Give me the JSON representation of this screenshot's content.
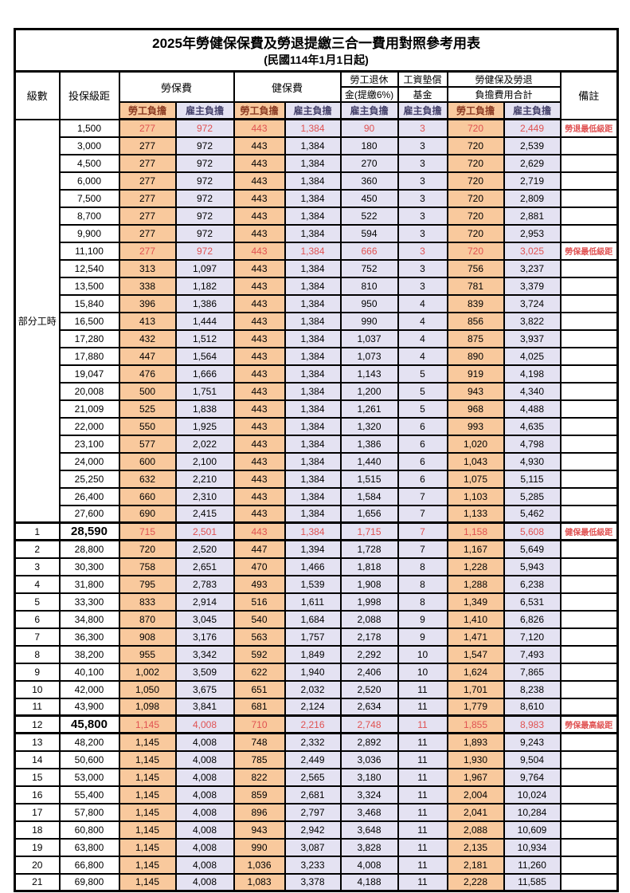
{
  "table": {
    "title": "2025年勞健保保費及勞退提繳三合一費用對照參考用表",
    "subtitle": "(民國114年1月1日起)",
    "header": {
      "level": "級數",
      "salary": "投保級距",
      "labor_insurance": "勞保費",
      "health_insurance": "健保費",
      "pension_line1": "勞工退休",
      "pension_line2": "金(提繳6%)",
      "wage_fund_line1": "工資墊償",
      "wage_fund_line2": "基金",
      "total_line1": "勞健保及勞退",
      "total_line2": "負擔費用合計",
      "remark": "備註",
      "employee": "勞工負擔",
      "employer": "雇主負擔"
    },
    "part_time_label": "部分工時",
    "part_time_rowspan": 23,
    "colors": {
      "employee_bg": "#F9C99D",
      "employer_bg": "#E4E2F2",
      "highlight_text": "#E05252",
      "border": "#000000"
    },
    "rows": [
      {
        "level": null,
        "salary": "1,500",
        "values": [
          "277",
          "972",
          "443",
          "1,384",
          "90",
          "3",
          "720",
          "2,449"
        ],
        "remark": "勞退最低級距",
        "red": true,
        "bold": false,
        "thick": false
      },
      {
        "level": null,
        "salary": "3,000",
        "values": [
          "277",
          "972",
          "443",
          "1,384",
          "180",
          "3",
          "720",
          "2,539"
        ],
        "remark": "",
        "red": false,
        "bold": false,
        "thick": false
      },
      {
        "level": null,
        "salary": "4,500",
        "values": [
          "277",
          "972",
          "443",
          "1,384",
          "270",
          "3",
          "720",
          "2,629"
        ],
        "remark": "",
        "red": false,
        "bold": false,
        "thick": false
      },
      {
        "level": null,
        "salary": "6,000",
        "values": [
          "277",
          "972",
          "443",
          "1,384",
          "360",
          "3",
          "720",
          "2,719"
        ],
        "remark": "",
        "red": false,
        "bold": false,
        "thick": false
      },
      {
        "level": null,
        "salary": "7,500",
        "values": [
          "277",
          "972",
          "443",
          "1,384",
          "450",
          "3",
          "720",
          "2,809"
        ],
        "remark": "",
        "red": false,
        "bold": false,
        "thick": false
      },
      {
        "level": null,
        "salary": "8,700",
        "values": [
          "277",
          "972",
          "443",
          "1,384",
          "522",
          "3",
          "720",
          "2,881"
        ],
        "remark": "",
        "red": false,
        "bold": false,
        "thick": false
      },
      {
        "level": null,
        "salary": "9,900",
        "values": [
          "277",
          "972",
          "443",
          "1,384",
          "594",
          "3",
          "720",
          "2,953"
        ],
        "remark": "",
        "red": false,
        "bold": false,
        "thick": false
      },
      {
        "level": null,
        "salary": "11,100",
        "values": [
          "277",
          "972",
          "443",
          "1,384",
          "666",
          "3",
          "720",
          "3,025"
        ],
        "remark": "勞保最低級距",
        "red": true,
        "bold": false,
        "thick": false
      },
      {
        "level": null,
        "salary": "12,540",
        "values": [
          "313",
          "1,097",
          "443",
          "1,384",
          "752",
          "3",
          "756",
          "3,237"
        ],
        "remark": "",
        "red": false,
        "bold": false,
        "thick": false
      },
      {
        "level": null,
        "salary": "13,500",
        "values": [
          "338",
          "1,182",
          "443",
          "1,384",
          "810",
          "3",
          "781",
          "3,379"
        ],
        "remark": "",
        "red": false,
        "bold": false,
        "thick": false
      },
      {
        "level": null,
        "salary": "15,840",
        "values": [
          "396",
          "1,386",
          "443",
          "1,384",
          "950",
          "4",
          "839",
          "3,724"
        ],
        "remark": "",
        "red": false,
        "bold": false,
        "thick": false
      },
      {
        "level": null,
        "salary": "16,500",
        "values": [
          "413",
          "1,444",
          "443",
          "1,384",
          "990",
          "4",
          "856",
          "3,822"
        ],
        "remark": "",
        "red": false,
        "bold": false,
        "thick": false
      },
      {
        "level": null,
        "salary": "17,280",
        "values": [
          "432",
          "1,512",
          "443",
          "1,384",
          "1,037",
          "4",
          "875",
          "3,937"
        ],
        "remark": "",
        "red": false,
        "bold": false,
        "thick": false
      },
      {
        "level": null,
        "salary": "17,880",
        "values": [
          "447",
          "1,564",
          "443",
          "1,384",
          "1,073",
          "4",
          "890",
          "4,025"
        ],
        "remark": "",
        "red": false,
        "bold": false,
        "thick": false
      },
      {
        "level": null,
        "salary": "19,047",
        "values": [
          "476",
          "1,666",
          "443",
          "1,384",
          "1,143",
          "5",
          "919",
          "4,198"
        ],
        "remark": "",
        "red": false,
        "bold": false,
        "thick": false
      },
      {
        "level": null,
        "salary": "20,008",
        "values": [
          "500",
          "1,751",
          "443",
          "1,384",
          "1,200",
          "5",
          "943",
          "4,340"
        ],
        "remark": "",
        "red": false,
        "bold": false,
        "thick": false
      },
      {
        "level": null,
        "salary": "21,009",
        "values": [
          "525",
          "1,838",
          "443",
          "1,384",
          "1,261",
          "5",
          "968",
          "4,488"
        ],
        "remark": "",
        "red": false,
        "bold": false,
        "thick": false
      },
      {
        "level": null,
        "salary": "22,000",
        "values": [
          "550",
          "1,925",
          "443",
          "1,384",
          "1,320",
          "6",
          "993",
          "4,635"
        ],
        "remark": "",
        "red": false,
        "bold": false,
        "thick": false
      },
      {
        "level": null,
        "salary": "23,100",
        "values": [
          "577",
          "2,022",
          "443",
          "1,384",
          "1,386",
          "6",
          "1,020",
          "4,798"
        ],
        "remark": "",
        "red": false,
        "bold": false,
        "thick": false
      },
      {
        "level": null,
        "salary": "24,000",
        "values": [
          "600",
          "2,100",
          "443",
          "1,384",
          "1,440",
          "6",
          "1,043",
          "4,930"
        ],
        "remark": "",
        "red": false,
        "bold": false,
        "thick": false
      },
      {
        "level": null,
        "salary": "25,250",
        "values": [
          "632",
          "2,210",
          "443",
          "1,384",
          "1,515",
          "6",
          "1,075",
          "5,115"
        ],
        "remark": "",
        "red": false,
        "bold": false,
        "thick": false
      },
      {
        "level": null,
        "salary": "26,400",
        "values": [
          "660",
          "2,310",
          "443",
          "1,384",
          "1,584",
          "7",
          "1,103",
          "5,285"
        ],
        "remark": "",
        "red": false,
        "bold": false,
        "thick": false
      },
      {
        "level": null,
        "salary": "27,600",
        "values": [
          "690",
          "2,415",
          "443",
          "1,384",
          "1,656",
          "7",
          "1,133",
          "5,462"
        ],
        "remark": "",
        "red": false,
        "bold": false,
        "thick": false
      },
      {
        "level": "1",
        "salary": "28,590",
        "values": [
          "715",
          "2,501",
          "443",
          "1,384",
          "1,715",
          "7",
          "1,158",
          "5,608"
        ],
        "remark": "健保最低級距",
        "red": true,
        "bold": true,
        "thick": true
      },
      {
        "level": "2",
        "salary": "28,800",
        "values": [
          "720",
          "2,520",
          "447",
          "1,394",
          "1,728",
          "7",
          "1,167",
          "5,649"
        ],
        "remark": "",
        "red": false,
        "bold": false,
        "thick": false
      },
      {
        "level": "3",
        "salary": "30,300",
        "values": [
          "758",
          "2,651",
          "470",
          "1,466",
          "1,818",
          "8",
          "1,228",
          "5,943"
        ],
        "remark": "",
        "red": false,
        "bold": false,
        "thick": false
      },
      {
        "level": "4",
        "salary": "31,800",
        "values": [
          "795",
          "2,783",
          "493",
          "1,539",
          "1,908",
          "8",
          "1,288",
          "6,238"
        ],
        "remark": "",
        "red": false,
        "bold": false,
        "thick": false
      },
      {
        "level": "5",
        "salary": "33,300",
        "values": [
          "833",
          "2,914",
          "516",
          "1,611",
          "1,998",
          "8",
          "1,349",
          "6,531"
        ],
        "remark": "",
        "red": false,
        "bold": false,
        "thick": false
      },
      {
        "level": "6",
        "salary": "34,800",
        "values": [
          "870",
          "3,045",
          "540",
          "1,684",
          "2,088",
          "9",
          "1,410",
          "6,826"
        ],
        "remark": "",
        "red": false,
        "bold": false,
        "thick": false
      },
      {
        "level": "7",
        "salary": "36,300",
        "values": [
          "908",
          "3,176",
          "563",
          "1,757",
          "2,178",
          "9",
          "1,471",
          "7,120"
        ],
        "remark": "",
        "red": false,
        "bold": false,
        "thick": false
      },
      {
        "level": "8",
        "salary": "38,200",
        "values": [
          "955",
          "3,342",
          "592",
          "1,849",
          "2,292",
          "10",
          "1,547",
          "7,493"
        ],
        "remark": "",
        "red": false,
        "bold": false,
        "thick": false
      },
      {
        "level": "9",
        "salary": "40,100",
        "values": [
          "1,002",
          "3,509",
          "622",
          "1,940",
          "2,406",
          "10",
          "1,624",
          "7,865"
        ],
        "remark": "",
        "red": false,
        "bold": false,
        "thick": false
      },
      {
        "level": "10",
        "salary": "42,000",
        "values": [
          "1,050",
          "3,675",
          "651",
          "2,032",
          "2,520",
          "11",
          "1,701",
          "8,238"
        ],
        "remark": "",
        "red": false,
        "bold": false,
        "thick": false
      },
      {
        "level": "11",
        "salary": "43,900",
        "values": [
          "1,098",
          "3,841",
          "681",
          "2,124",
          "2,634",
          "11",
          "1,779",
          "8,610"
        ],
        "remark": "",
        "red": false,
        "bold": false,
        "thick": false
      },
      {
        "level": "12",
        "salary": "45,800",
        "values": [
          "1,145",
          "4,008",
          "710",
          "2,216",
          "2,748",
          "11",
          "1,855",
          "8,983"
        ],
        "remark": "勞保最高級距",
        "red": true,
        "bold": true,
        "thick": true
      },
      {
        "level": "13",
        "salary": "48,200",
        "values": [
          "1,145",
          "4,008",
          "748",
          "2,332",
          "2,892",
          "11",
          "1,893",
          "9,243"
        ],
        "remark": "",
        "red": false,
        "bold": false,
        "thick": false
      },
      {
        "level": "14",
        "salary": "50,600",
        "values": [
          "1,145",
          "4,008",
          "785",
          "2,449",
          "3,036",
          "11",
          "1,930",
          "9,504"
        ],
        "remark": "",
        "red": false,
        "bold": false,
        "thick": false
      },
      {
        "level": "15",
        "salary": "53,000",
        "values": [
          "1,145",
          "4,008",
          "822",
          "2,565",
          "3,180",
          "11",
          "1,967",
          "9,764"
        ],
        "remark": "",
        "red": false,
        "bold": false,
        "thick": false
      },
      {
        "level": "16",
        "salary": "55,400",
        "values": [
          "1,145",
          "4,008",
          "859",
          "2,681",
          "3,324",
          "11",
          "2,004",
          "10,024"
        ],
        "remark": "",
        "red": false,
        "bold": false,
        "thick": false
      },
      {
        "level": "17",
        "salary": "57,800",
        "values": [
          "1,145",
          "4,008",
          "896",
          "2,797",
          "3,468",
          "11",
          "2,041",
          "10,284"
        ],
        "remark": "",
        "red": false,
        "bold": false,
        "thick": false
      },
      {
        "level": "18",
        "salary": "60,800",
        "values": [
          "1,145",
          "4,008",
          "943",
          "2,942",
          "3,648",
          "11",
          "2,088",
          "10,609"
        ],
        "remark": "",
        "red": false,
        "bold": false,
        "thick": false
      },
      {
        "level": "19",
        "salary": "63,800",
        "values": [
          "1,145",
          "4,008",
          "990",
          "3,087",
          "3,828",
          "11",
          "2,135",
          "10,934"
        ],
        "remark": "",
        "red": false,
        "bold": false,
        "thick": false
      },
      {
        "level": "20",
        "salary": "66,800",
        "values": [
          "1,145",
          "4,008",
          "1,036",
          "3,233",
          "4,008",
          "11",
          "2,181",
          "11,260"
        ],
        "remark": "",
        "red": false,
        "bold": false,
        "thick": false
      },
      {
        "level": "21",
        "salary": "69,800",
        "values": [
          "1,145",
          "4,008",
          "1,083",
          "3,378",
          "4,188",
          "11",
          "2,228",
          "11,585"
        ],
        "remark": "",
        "red": false,
        "bold": false,
        "thick": false
      }
    ]
  }
}
